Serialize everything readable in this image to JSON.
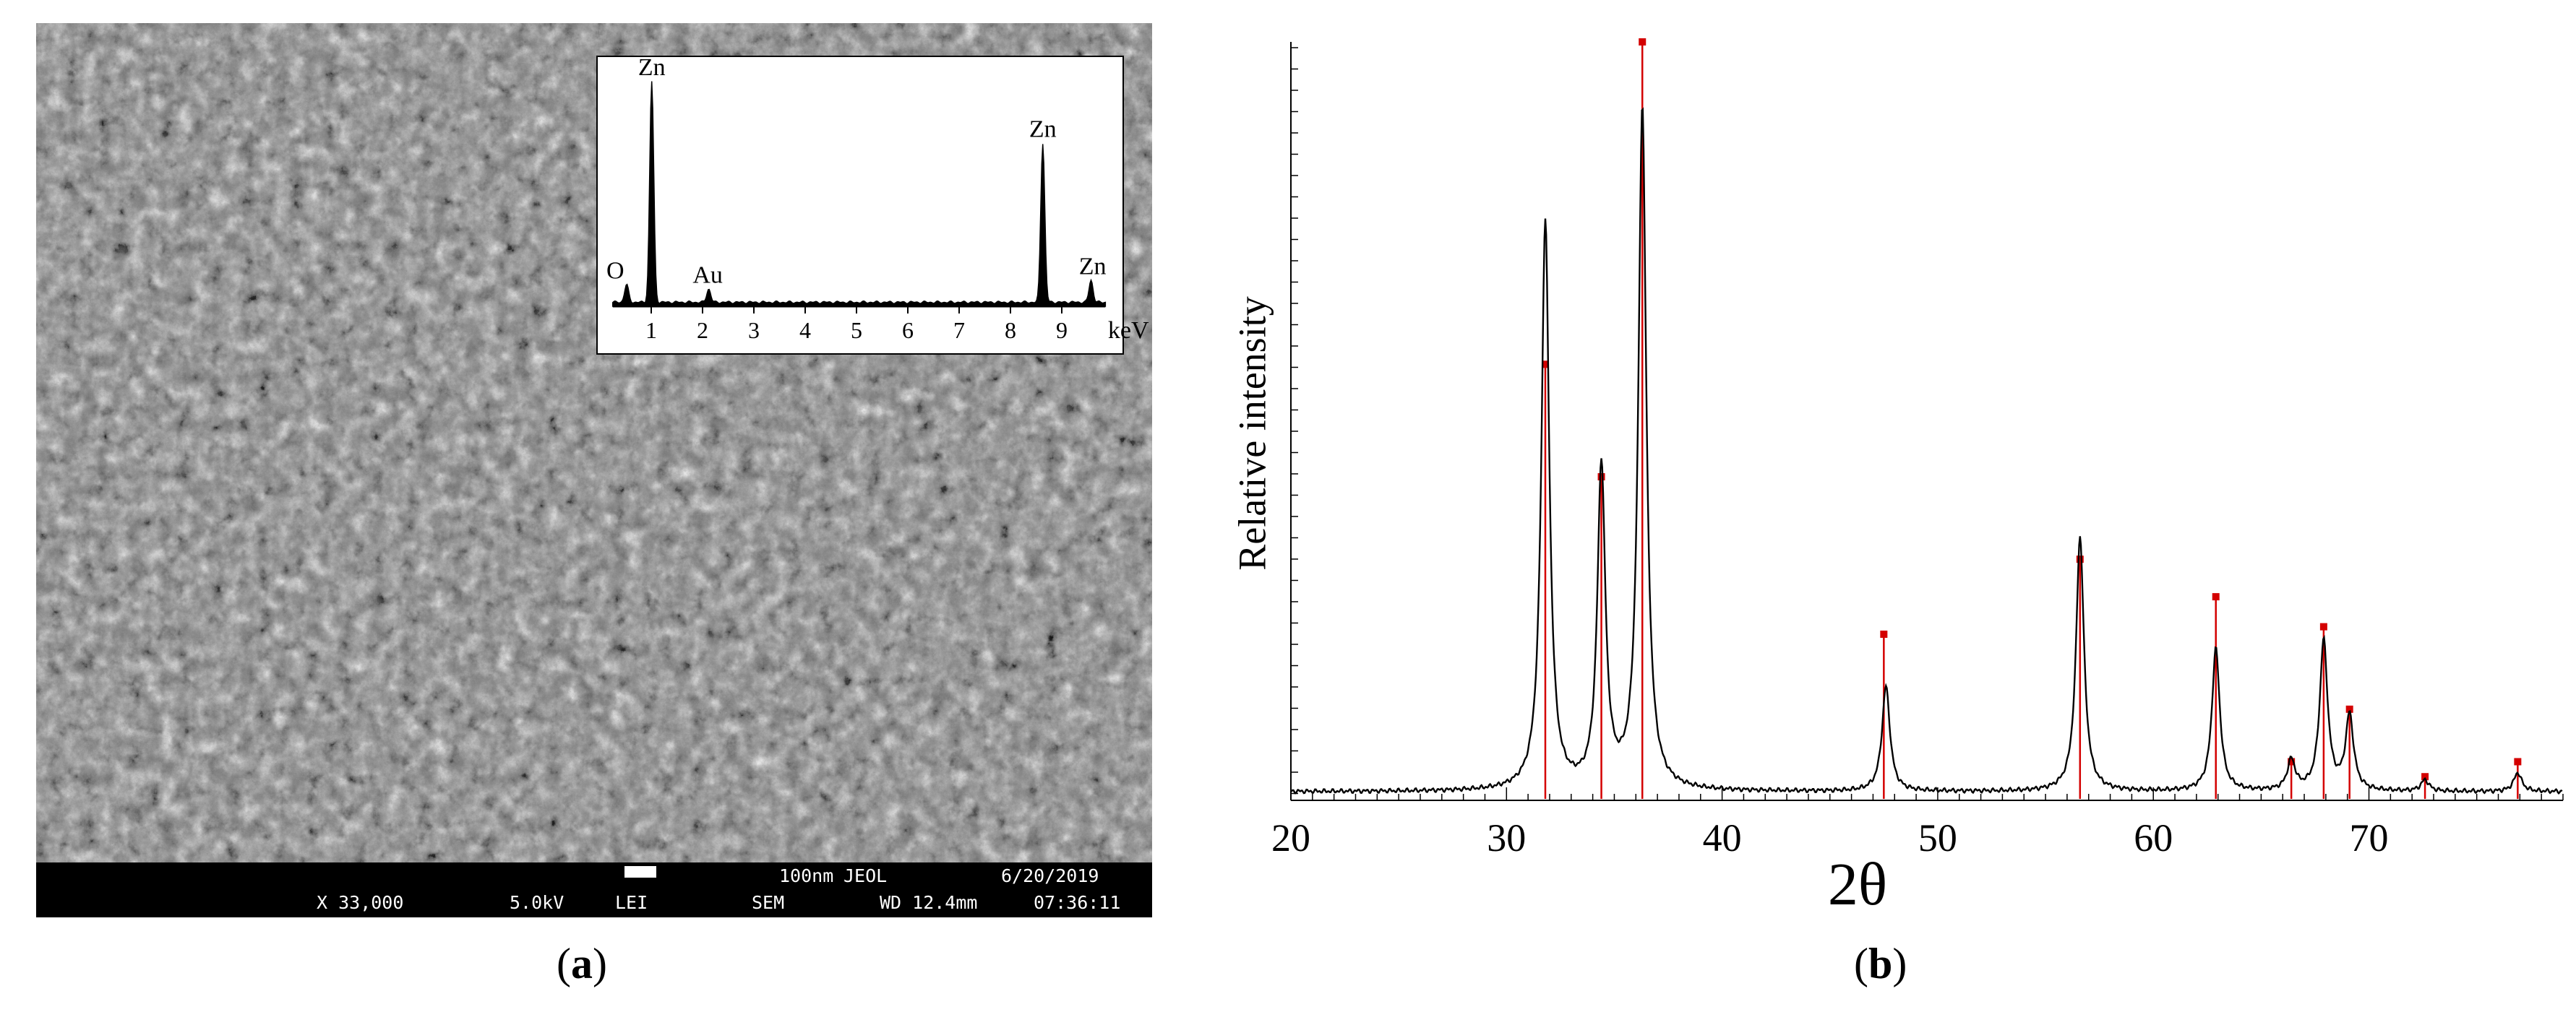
{
  "figure": {
    "label_a": "a",
    "label_b": "b"
  },
  "sem": {
    "scale_bar_text": "100nm",
    "brand": "JEOL",
    "date": "6/20/2019",
    "magnification": "X 33,000",
    "voltage": "5.0kV",
    "detector": "LEI",
    "mode": "SEM",
    "working_distance": "WD 12.4mm",
    "time": "07:36:11",
    "colors": {
      "background": "#7c7c7c",
      "info_bar": "#000000",
      "text": "#ffffff"
    }
  },
  "chart_data": [
    {
      "type": "line",
      "xlabel": "keV",
      "x_ticks": [
        1,
        2,
        3,
        4,
        5,
        6,
        7,
        8,
        9
      ],
      "xlim": [
        0,
        10
      ],
      "peaks": [
        {
          "element": "O",
          "kev": 0.52,
          "height": 0.08
        },
        {
          "element": "Zn",
          "kev": 1.01,
          "height": 1.0
        },
        {
          "element": "Au",
          "kev": 2.12,
          "height": 0.06
        },
        {
          "element": "Zn",
          "kev": 8.63,
          "height": 0.72
        },
        {
          "element": "Zn",
          "kev": 9.57,
          "height": 0.1
        }
      ],
      "peak_labels": [
        {
          "text": "Zn",
          "kev": 1.01
        },
        {
          "text": "O",
          "kev": 0.3
        },
        {
          "text": "Au",
          "kev": 2.1
        },
        {
          "text": "Zn",
          "kev": 8.63
        },
        {
          "text": "Zn",
          "kev": 9.6
        }
      ]
    },
    {
      "type": "line",
      "xlabel": "2θ",
      "ylabel": "Relative intensity",
      "xlim": [
        20,
        79
      ],
      "x_ticks": [
        20,
        30,
        40,
        50,
        60,
        70
      ],
      "colors": {
        "measured": "#000000",
        "reference": "#d40000"
      },
      "measured_peaks": [
        {
          "two_theta": 31.8,
          "intensity": 0.76
        },
        {
          "two_theta": 34.4,
          "intensity": 0.43
        },
        {
          "two_theta": 36.3,
          "intensity": 0.91
        },
        {
          "two_theta": 47.6,
          "intensity": 0.14
        },
        {
          "two_theta": 56.6,
          "intensity": 0.34
        },
        {
          "two_theta": 62.9,
          "intensity": 0.19
        },
        {
          "two_theta": 66.4,
          "intensity": 0.04
        },
        {
          "two_theta": 67.9,
          "intensity": 0.2
        },
        {
          "two_theta": 69.1,
          "intensity": 0.1
        },
        {
          "two_theta": 72.6,
          "intensity": 0.015
        },
        {
          "two_theta": 76.9,
          "intensity": 0.025
        }
      ],
      "reference_lines": [
        {
          "two_theta": 31.8,
          "intensity": 0.57
        },
        {
          "two_theta": 34.4,
          "intensity": 0.42
        },
        {
          "two_theta": 36.3,
          "intensity": 1.0
        },
        {
          "two_theta": 47.5,
          "intensity": 0.21
        },
        {
          "two_theta": 56.6,
          "intensity": 0.31
        },
        {
          "two_theta": 62.9,
          "intensity": 0.26
        },
        {
          "two_theta": 66.4,
          "intensity": 0.04
        },
        {
          "two_theta": 67.9,
          "intensity": 0.22
        },
        {
          "two_theta": 69.1,
          "intensity": 0.11
        },
        {
          "two_theta": 72.6,
          "intensity": 0.02
        },
        {
          "two_theta": 76.9,
          "intensity": 0.04
        }
      ]
    }
  ]
}
